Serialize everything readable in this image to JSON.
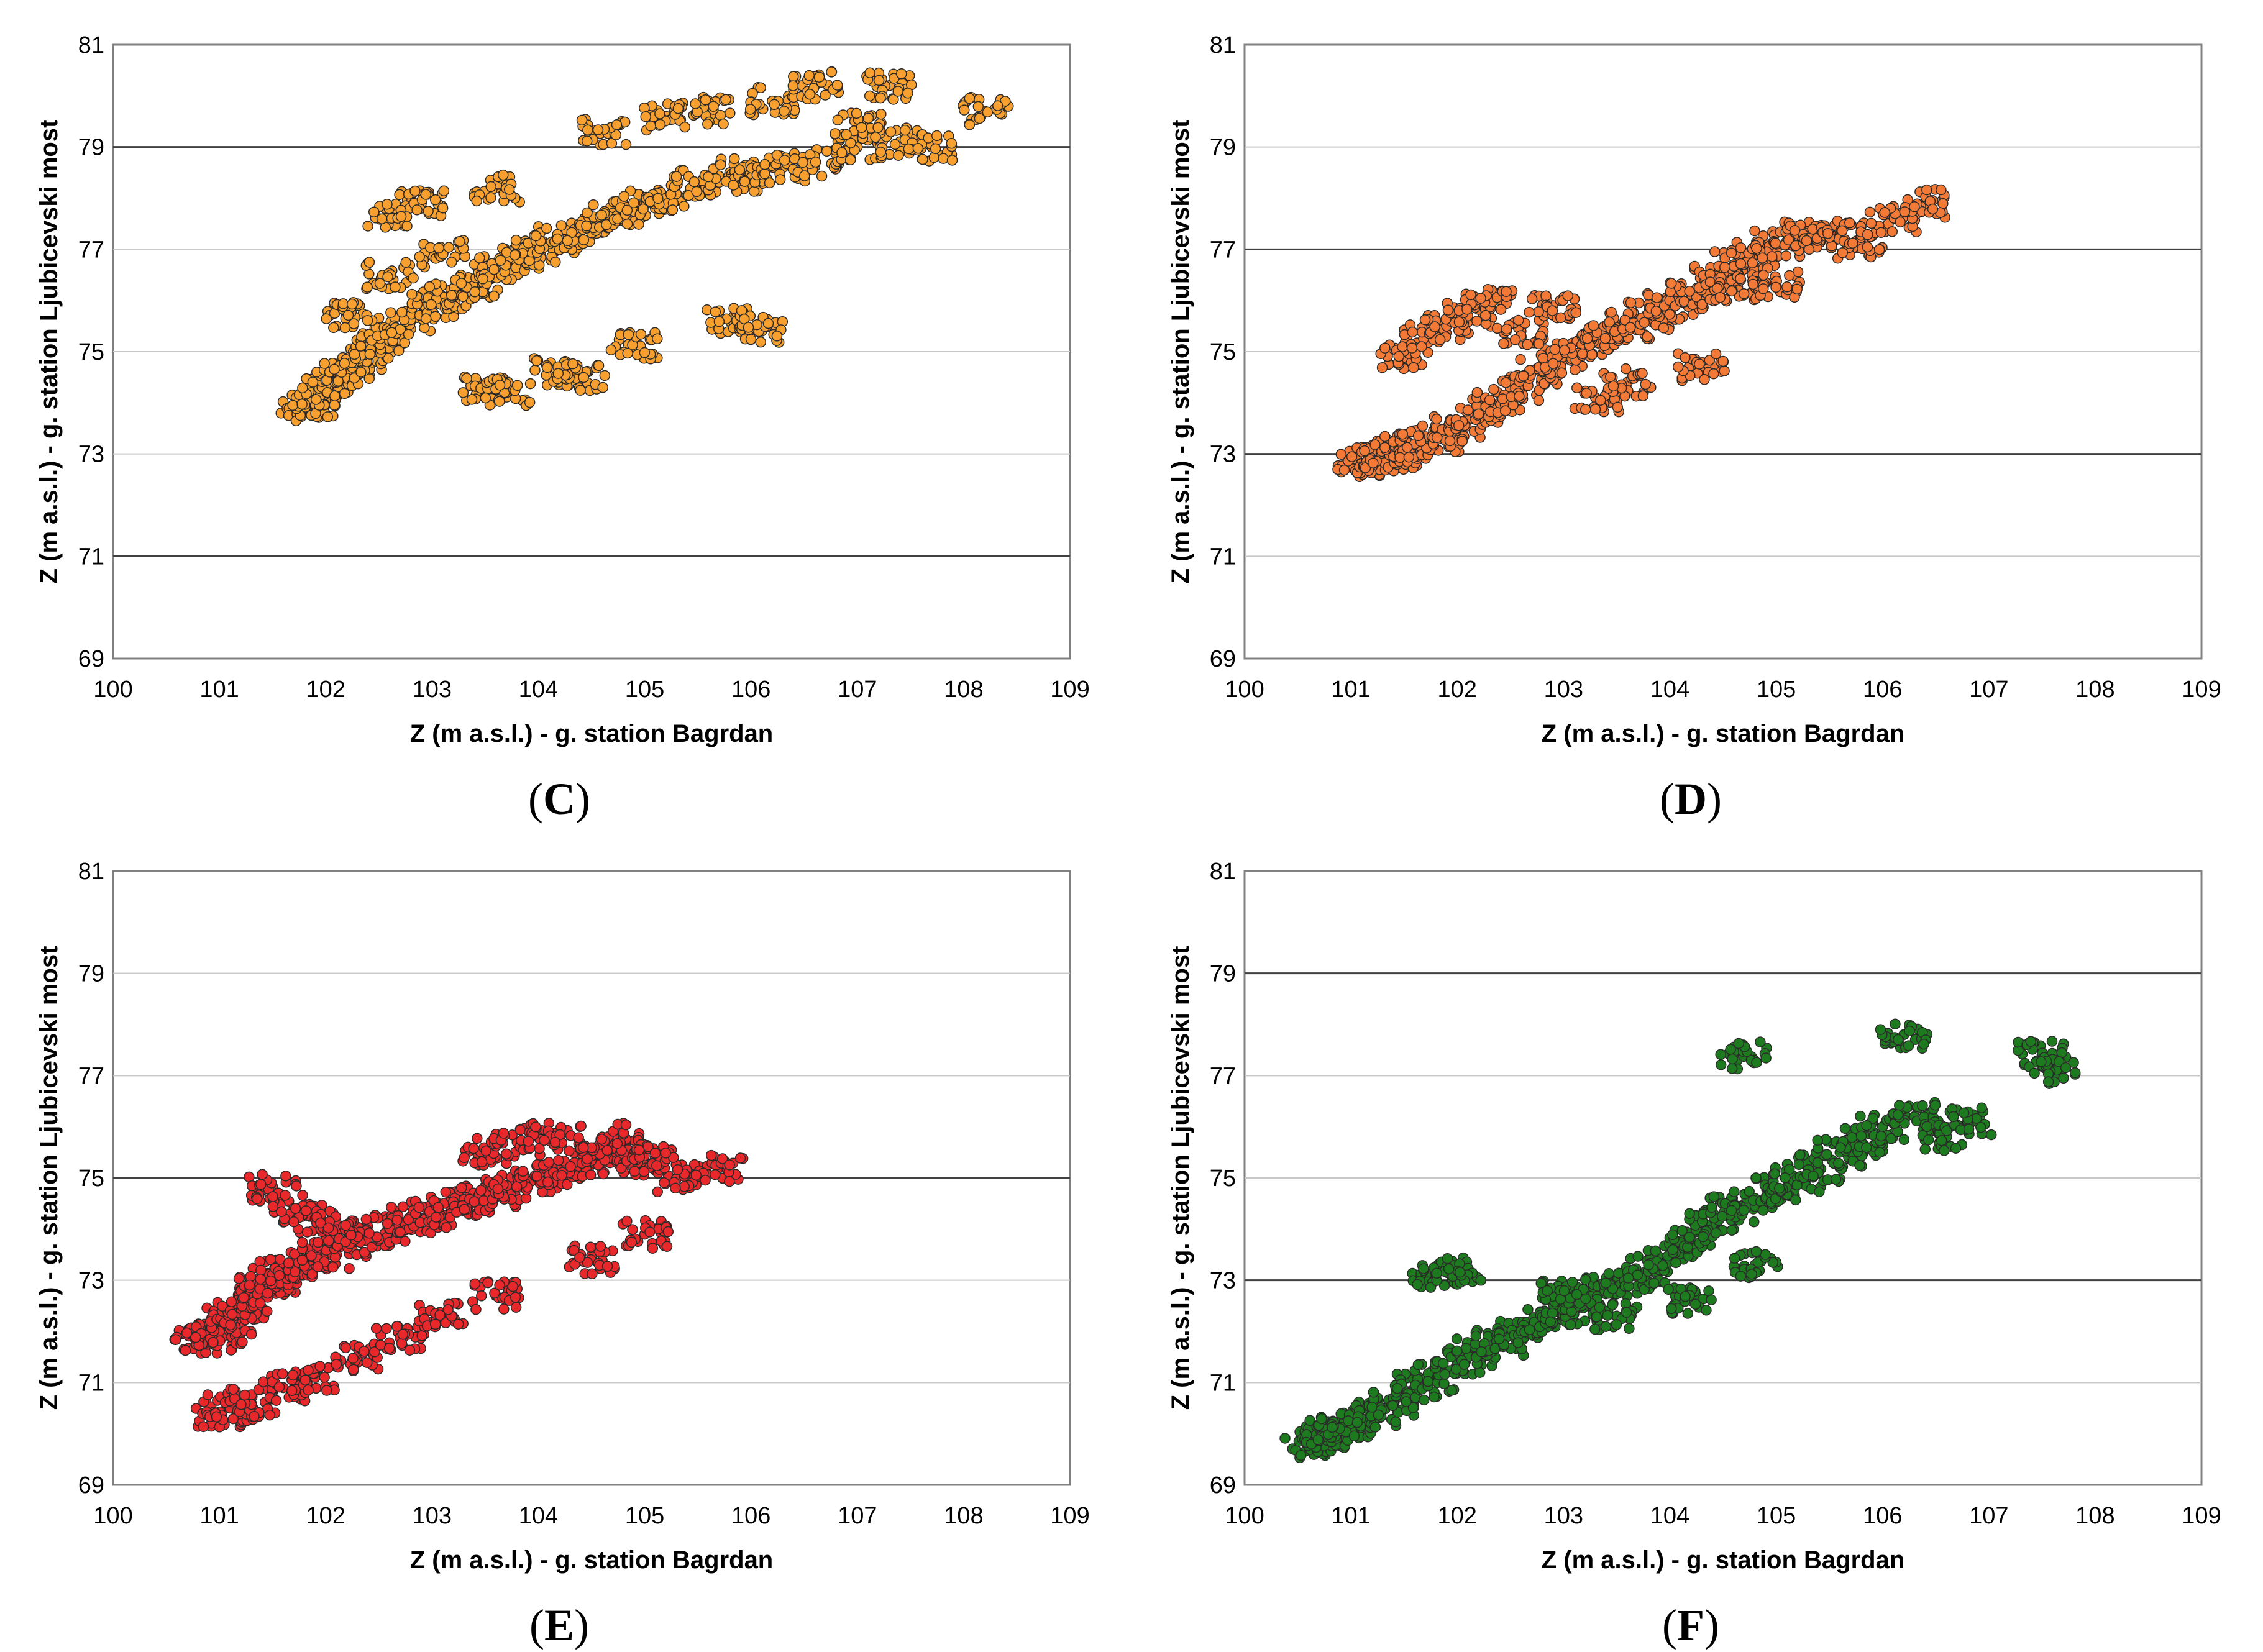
{
  "chart_data": [
    {
      "type": "scatter",
      "caption": "C",
      "xlabel": "Z (m a.s.l.) - g. station Bagrdan",
      "ylabel": "Z (m a.s.l.) - g. station Ljubicevski most",
      "xlim": [
        100,
        109
      ],
      "ylim": [
        69,
        81
      ],
      "x_ticks": [
        "100",
        "101",
        "102",
        "103",
        "104",
        "105",
        "106",
        "107",
        "108",
        "109"
      ],
      "y_ticks": [
        "69",
        "71",
        "73",
        "75",
        "77",
        "79",
        "81"
      ],
      "grid": "horizontal",
      "color": "#F7A02F",
      "series": [
        {
          "name": "observations",
          "x": [
            101.8,
            101.9,
            102.0,
            102.1,
            102.2,
            102.3,
            102.4,
            102.5,
            102.6,
            102.8,
            103.0,
            103.2,
            103.4,
            103.6,
            103.8,
            104.0,
            104.2,
            104.4,
            104.6,
            104.8,
            105.0,
            105.2,
            105.5,
            105.8,
            106.0,
            106.3,
            106.6,
            107.0,
            107.4,
            107.7,
            108.2,
            102.6,
            102.9,
            103.6,
            104.6,
            105.2,
            105.6,
            106.2,
            106.6,
            107.0,
            107.3,
            103.5,
            103.7,
            104.1,
            104.4,
            104.9,
            105.8,
            106.1,
            102.2,
            102.6,
            103.1
          ],
          "y": [
            73.9,
            74.0,
            74.2,
            74.4,
            74.6,
            74.8,
            75.0,
            75.2,
            75.4,
            75.6,
            75.9,
            76.1,
            76.3,
            76.6,
            76.8,
            77.0,
            77.2,
            77.4,
            77.6,
            77.7,
            77.9,
            78.0,
            78.3,
            78.5,
            78.4,
            78.6,
            78.7,
            79.0,
            79.1,
            79.0,
            79.7,
            77.7,
            77.9,
            78.2,
            79.3,
            79.6,
            79.7,
            79.9,
            80.2,
            79.4,
            80.2,
            74.3,
            74.2,
            74.6,
            74.5,
            75.1,
            75.6,
            75.4,
            75.7,
            76.5,
            76.9
          ]
        }
      ]
    },
    {
      "type": "scatter",
      "caption": "D",
      "xlabel": "Z (m a.s.l.) - g. station Bagrdan",
      "ylabel": "Z (m a.s.l.) - g. station Ljubicevski most",
      "xlim": [
        100,
        109
      ],
      "ylim": [
        69,
        81
      ],
      "x_ticks": [
        "100",
        "101",
        "102",
        "103",
        "104",
        "105",
        "106",
        "107",
        "108",
        "109"
      ],
      "y_ticks": [
        "69",
        "71",
        "73",
        "75",
        "77",
        "79",
        "81"
      ],
      "grid": "horizontal",
      "color": "#F37A36",
      "series": [
        {
          "name": "observations",
          "x": [
            101.1,
            101.2,
            101.3,
            101.4,
            101.5,
            101.6,
            101.8,
            102.0,
            102.2,
            102.4,
            102.6,
            102.8,
            103.0,
            103.2,
            103.4,
            103.6,
            103.8,
            104.0,
            104.2,
            104.4,
            104.6,
            104.8,
            105.0,
            105.2,
            105.4,
            105.6,
            105.8,
            106.1,
            106.4,
            101.5,
            101.7,
            101.9,
            102.1,
            102.3,
            102.6,
            102.9,
            103.3,
            103.6,
            104.3,
            104.6,
            105.0
          ],
          "y": [
            72.8,
            72.9,
            72.9,
            73.0,
            73.1,
            73.2,
            73.3,
            73.5,
            73.8,
            74.0,
            74.3,
            74.6,
            74.9,
            75.1,
            75.3,
            75.5,
            75.7,
            75.9,
            76.1,
            76.4,
            76.7,
            76.9,
            77.1,
            77.3,
            77.2,
            77.3,
            77.1,
            77.6,
            77.9,
            74.9,
            75.3,
            75.5,
            75.7,
            76.1,
            75.4,
            75.9,
            74.1,
            74.4,
            74.7,
            76.2,
            76.3
          ]
        }
      ]
    },
    {
      "type": "scatter",
      "caption": "E",
      "xlabel": "Z (m a.s.l.) - g. station Bagrdan",
      "ylabel": "Z (m a.s.l.) - g. station Ljubicevski most",
      "xlim": [
        100,
        109
      ],
      "ylim": [
        69,
        81
      ],
      "x_ticks": [
        "100",
        "101",
        "102",
        "103",
        "104",
        "105",
        "106",
        "107",
        "108",
        "109"
      ],
      "y_ticks": [
        "69",
        "71",
        "73",
        "75",
        "77",
        "79",
        "81"
      ],
      "grid": "horizontal",
      "color": "#E8282B",
      "series": [
        {
          "name": "observations",
          "x": [
            100.8,
            100.9,
            101.0,
            101.1,
            101.2,
            101.3,
            101.4,
            101.5,
            101.6,
            101.7,
            101.8,
            102.0,
            102.2,
            102.4,
            102.6,
            102.8,
            103.0,
            103.2,
            103.4,
            103.6,
            103.8,
            104.0,
            104.2,
            104.4,
            104.6,
            104.8,
            105.0,
            105.3,
            105.7,
            101.5,
            101.7,
            101.9,
            102.1,
            103.5,
            103.8,
            104.1,
            104.6,
            105.1,
            101.0,
            101.1,
            101.3,
            101.6,
            101.9,
            102.3,
            102.7,
            103.1,
            103.6,
            104.5,
            105.0
          ],
          "y": [
            71.8,
            71.9,
            72.0,
            72.2,
            72.4,
            72.6,
            72.8,
            73.0,
            73.1,
            73.2,
            73.3,
            73.5,
            73.7,
            73.9,
            74.0,
            74.2,
            74.3,
            74.5,
            74.6,
            74.7,
            74.8,
            75.0,
            75.1,
            75.3,
            75.5,
            75.6,
            75.3,
            75.0,
            75.2,
            74.8,
            74.4,
            74.2,
            73.9,
            75.5,
            75.7,
            75.8,
            75.8,
            75.4,
            70.4,
            70.5,
            70.6,
            70.9,
            71.1,
            71.5,
            71.9,
            72.3,
            72.7,
            73.4,
            73.9
          ]
        }
      ]
    },
    {
      "type": "scatter",
      "caption": "F",
      "xlabel": "Z (m a.s.l.) - g. station Bagrdan",
      "ylabel": "Z (m a.s.l.) - g. station Ljubicevski most",
      "xlim": [
        100,
        109
      ],
      "ylim": [
        69,
        81
      ],
      "x_ticks": [
        "100",
        "101",
        "102",
        "103",
        "104",
        "105",
        "106",
        "107",
        "108",
        "109"
      ],
      "y_ticks": [
        "69",
        "71",
        "73",
        "75",
        "77",
        "79",
        "81"
      ],
      "grid": "horizontal",
      "color": "#1E7A1E",
      "series": [
        {
          "name": "observations",
          "x": [
            100.6,
            100.7,
            100.8,
            100.9,
            101.0,
            101.2,
            101.4,
            101.6,
            101.8,
            102.0,
            102.2,
            102.4,
            102.6,
            102.8,
            103.0,
            103.2,
            103.4,
            103.6,
            103.8,
            104.0,
            104.2,
            104.4,
            104.6,
            104.8,
            105.0,
            105.2,
            105.4,
            105.6,
            105.8,
            106.0,
            106.3,
            106.6,
            106.8,
            107.5,
            107.6,
            104.7,
            106.2,
            101.8,
            102.0,
            103.0,
            103.5,
            104.2,
            104.8
          ],
          "y": [
            69.8,
            69.9,
            70.0,
            70.1,
            70.2,
            70.4,
            70.6,
            70.9,
            71.1,
            71.4,
            71.6,
            71.8,
            72.0,
            72.2,
            72.4,
            72.6,
            72.8,
            73.0,
            73.2,
            73.5,
            73.8,
            74.1,
            74.4,
            74.6,
            74.8,
            75.0,
            75.2,
            75.5,
            75.7,
            76.0,
            76.2,
            75.8,
            76.1,
            77.4,
            77.1,
            77.4,
            77.8,
            73.1,
            73.2,
            72.8,
            72.3,
            72.6,
            73.3
          ]
        }
      ]
    }
  ]
}
